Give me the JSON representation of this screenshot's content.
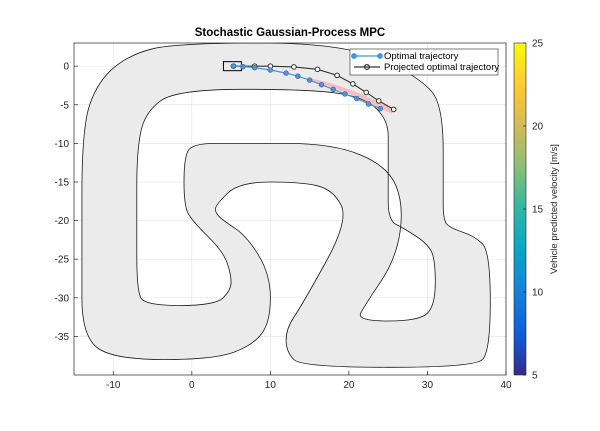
{
  "chart_data": {
    "type": "line",
    "title": "Stochastic Gaussian-Process MPC",
    "xlabel": "",
    "ylabel": "",
    "xlim": [
      -15,
      40
    ],
    "ylim": [
      -40,
      3
    ],
    "xticks": [
      -10,
      0,
      10,
      20,
      30,
      40
    ],
    "yticks": [
      0,
      -5,
      -10,
      -15,
      -20,
      -25,
      -30,
      -35
    ],
    "grid": true,
    "legend_position": "top-right",
    "track": {
      "fill_color": "#ebebeb",
      "edge_color": "#1a1a1a",
      "outer_boundary": [
        [
          -2,
          3
        ],
        [
          20,
          3
        ],
        [
          30,
          -2
        ],
        [
          32,
          -6
        ],
        [
          32,
          -16
        ],
        [
          32,
          -20
        ],
        [
          33,
          -21
        ],
        [
          36,
          -22
        ],
        [
          38,
          -24
        ],
        [
          38,
          -37
        ],
        [
          36,
          -39
        ],
        [
          14,
          -39
        ],
        [
          12,
          -37
        ],
        [
          12,
          -34
        ],
        [
          14,
          -31
        ],
        [
          20,
          -20
        ],
        [
          18,
          -16
        ],
        [
          14,
          -15
        ],
        [
          6,
          -15
        ],
        [
          3,
          -18
        ],
        [
          3,
          -19
        ],
        [
          4,
          -20
        ],
        [
          7,
          -22
        ],
        [
          10,
          -27
        ],
        [
          10,
          -33
        ],
        [
          8,
          -36
        ],
        [
          3,
          -38
        ],
        [
          -10,
          -38
        ],
        [
          -14,
          -35
        ],
        [
          -14,
          -25
        ],
        [
          -14,
          -8
        ],
        [
          -12,
          -2
        ],
        [
          -8,
          1.5
        ]
      ],
      "inner_boundary": [
        [
          -2,
          -3
        ],
        [
          15,
          -3
        ],
        [
          22,
          -4
        ],
        [
          25,
          -7
        ],
        [
          25,
          -11
        ],
        [
          25,
          -15
        ],
        [
          25,
          -20
        ],
        [
          27,
          -21
        ],
        [
          30,
          -23
        ],
        [
          31,
          -25
        ],
        [
          31,
          -31
        ],
        [
          29,
          -33
        ],
        [
          21,
          -33
        ],
        [
          22,
          -31
        ],
        [
          26,
          -25
        ],
        [
          27,
          -18
        ],
        [
          25,
          -13
        ],
        [
          18,
          -10
        ],
        [
          6,
          -10
        ],
        [
          0,
          -10
        ],
        [
          -1,
          -12
        ],
        [
          -1,
          -18
        ],
        [
          0,
          -20
        ],
        [
          4,
          -24
        ],
        [
          5,
          -27
        ],
        [
          5,
          -29
        ],
        [
          3,
          -31
        ],
        [
          -6,
          -31
        ],
        [
          -7,
          -29
        ],
        [
          -7,
          -20
        ],
        [
          -7,
          -11
        ],
        [
          -6,
          -6
        ]
      ]
    },
    "uncertainty_band": {
      "color": "#ff9999",
      "upper": [
        [
          15,
          -1.5
        ],
        [
          18,
          -2.3
        ],
        [
          20,
          -3.0
        ],
        [
          22,
          -3.8
        ],
        [
          24,
          -4.7
        ],
        [
          25.5,
          -5.4
        ]
      ],
      "lower": [
        [
          25.5,
          -6.2
        ],
        [
          23.6,
          -5.3
        ],
        [
          21.5,
          -4.2
        ],
        [
          19.5,
          -3.4
        ],
        [
          17.5,
          -2.6
        ],
        [
          15,
          -2.0
        ]
      ]
    },
    "series": [
      {
        "name": "Optimal trajectory",
        "color": "#3a9ad9",
        "x": [
          5.3,
          6.5,
          8,
          10,
          12,
          13.5,
          15,
          16.5,
          18,
          19.5,
          21,
          22.5,
          24
        ],
        "y": [
          0,
          -0.05,
          -0.2,
          -0.5,
          -0.9,
          -1.3,
          -1.8,
          -2.4,
          -3.0,
          -3.6,
          -4.2,
          -4.9,
          -5.5
        ],
        "predicted_velocity": [
          8.5,
          9,
          9.2,
          9.4,
          9.6,
          9.7,
          9.8,
          9.9,
          10,
          10.1,
          10.2,
          10.3,
          10.4
        ]
      },
      {
        "name": "Projected optimal trajectory",
        "color": "#333333",
        "x": [
          5.3,
          8,
          10,
          13,
          16,
          18.5,
          20.5,
          22.2,
          23.8,
          25.7
        ],
        "y": [
          0,
          0,
          0,
          -0.1,
          -0.4,
          -1.2,
          -2.3,
          -3.4,
          -4.5,
          -5.6
        ]
      }
    ],
    "vehicle_marker": {
      "x": 5.3,
      "y": 0
    },
    "colorbar": {
      "label": "Vehicle predicted velocity [m/s]",
      "range": [
        5,
        25
      ],
      "ticks": [
        5,
        10,
        15,
        20,
        25
      ],
      "colormap": "parula"
    }
  }
}
